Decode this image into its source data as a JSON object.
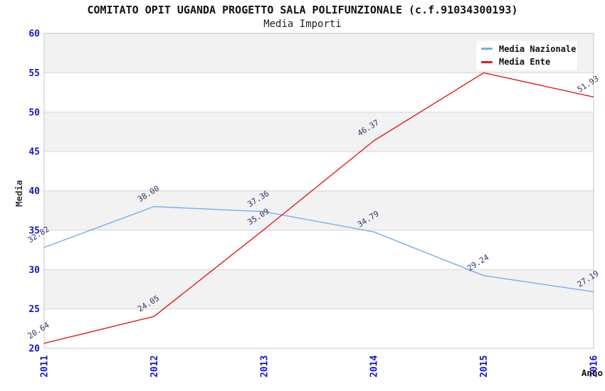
{
  "chart_data": {
    "type": "line",
    "title": "COMITATO OPIT UGANDA PROGETTO SALA POLIFUNZIONALE (c.f.91034300193)",
    "subtitle": "Media Importi",
    "xlabel": "Anno",
    "ylabel": "Media",
    "x_categories": [
      "2011",
      "2012",
      "2013",
      "2014",
      "2015",
      "2016"
    ],
    "ylim": [
      20,
      60
    ],
    "ytick_step": 5,
    "yticks": [
      20,
      25,
      30,
      35,
      40,
      45,
      50,
      55,
      60
    ],
    "grid": "horizontal-gridlines-with-alternating-bands",
    "legend_position": "top-right",
    "series": [
      {
        "name": "Media Nazionale",
        "color": "#76ade8",
        "values": [
          32.82,
          38.0,
          37.36,
          34.79,
          29.24,
          27.19
        ],
        "point_labels": [
          "32.82",
          "38.00",
          "37.36",
          "34.79",
          "29.24",
          "27.19"
        ]
      },
      {
        "name": "Media Ente",
        "color": "#e21d1d",
        "values": [
          20.64,
          24.05,
          35.09,
          46.37,
          55.0,
          51.93
        ],
        "point_labels": [
          "20.64",
          "24.05",
          "35.09",
          "46.37",
          "",
          "51.93"
        ]
      }
    ]
  },
  "colors": {
    "tick_label": "#1515cc",
    "point_label": "#333366",
    "axis_title": "#333333",
    "xlabel_text": "#111111",
    "band_fill": "#f2f2f2",
    "gridline": "#d6d6d6",
    "plot_border": "#c4c4c4",
    "legend_background": "#ffffff"
  }
}
